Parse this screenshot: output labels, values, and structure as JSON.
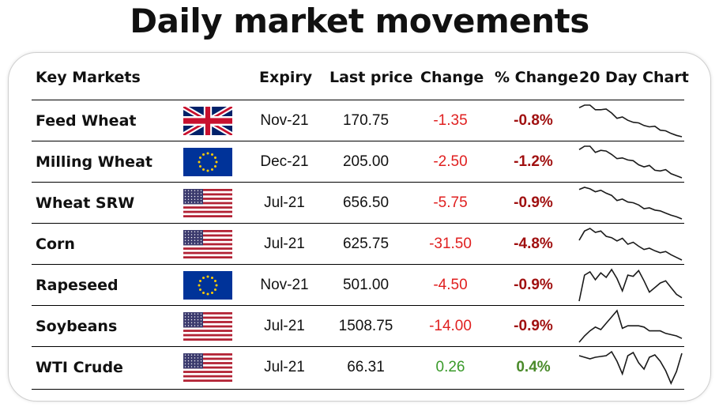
{
  "title": "Daily market movements",
  "headers": {
    "market": "Key Markets",
    "expiry": "Expiry",
    "price": "Last price",
    "change": "Change",
    "pct": "% Change",
    "chart": "20 Day Chart"
  },
  "colors": {
    "negative_change": "#e02020",
    "negative_pct": "#a01010",
    "positive_change": "#3a9a2a",
    "positive_pct": "#4a8a2a",
    "spark": "#1a1a1a"
  },
  "rows": [
    {
      "name": "Feed Wheat",
      "flag": "uk-flag",
      "expiry": "Nov-21",
      "price": "170.75",
      "change": "-1.35",
      "pct": "-0.8%",
      "direction": "down",
      "spark": [
        96,
        100,
        100,
        93,
        93,
        94,
        88,
        80,
        82,
        77,
        74,
        73,
        69,
        67,
        68,
        62,
        61,
        57,
        54,
        52
      ]
    },
    {
      "name": "Milling Wheat",
      "flag": "eu-flag",
      "expiry": "Dec-21",
      "price": "205.00",
      "change": "-2.50",
      "pct": "-1.2%",
      "direction": "down",
      "spark": [
        95,
        100,
        100,
        91,
        94,
        93,
        88,
        82,
        83,
        80,
        79,
        73,
        70,
        72,
        65,
        64,
        66,
        60,
        57,
        54
      ]
    },
    {
      "name": "Wheat SRW",
      "flag": "us-flag",
      "expiry": "Jul-21",
      "price": "656.50",
      "change": "-5.75",
      "pct": "-0.9%",
      "direction": "down",
      "spark": [
        97,
        100,
        98,
        94,
        96,
        92,
        89,
        82,
        84,
        80,
        79,
        76,
        71,
        72,
        69,
        68,
        65,
        62,
        60,
        57
      ]
    },
    {
      "name": "Corn",
      "flag": "us-flag",
      "expiry": "Jul-21",
      "price": "625.75",
      "change": "-31.50",
      "pct": "-4.8%",
      "direction": "down",
      "spark": [
        82,
        96,
        100,
        94,
        96,
        88,
        86,
        81,
        85,
        76,
        79,
        73,
        68,
        70,
        66,
        63,
        65,
        60,
        56,
        52
      ]
    },
    {
      "name": "Rapeseed",
      "flag": "eu-flag",
      "expiry": "Nov-21",
      "price": "501.00",
      "change": "-4.50",
      "pct": "-0.9%",
      "direction": "down",
      "spark": [
        72,
        95,
        98,
        91,
        97,
        93,
        100,
        92,
        81,
        95,
        94,
        99,
        90,
        80,
        84,
        88,
        90,
        84,
        78,
        75
      ]
    },
    {
      "name": "Soybeans",
      "flag": "us-flag",
      "expiry": "Jul-21",
      "price": "1508.75",
      "change": "-14.00",
      "pct": "-0.9%",
      "direction": "down",
      "spark": [
        75,
        80,
        84,
        87,
        85,
        90,
        95,
        100,
        86,
        88,
        88,
        88,
        87,
        84,
        84,
        84,
        82,
        81,
        80,
        78
      ]
    },
    {
      "name": "WTI Crude",
      "flag": "us-flag",
      "expiry": "Jul-21",
      "price": "66.31",
      "change": "0.26",
      "pct": "0.4%",
      "direction": "up",
      "spark": [
        95,
        93,
        91,
        93,
        94,
        95,
        100,
        88,
        72,
        95,
        99,
        86,
        78,
        93,
        96,
        88,
        76,
        60,
        75,
        98
      ]
    }
  ]
}
